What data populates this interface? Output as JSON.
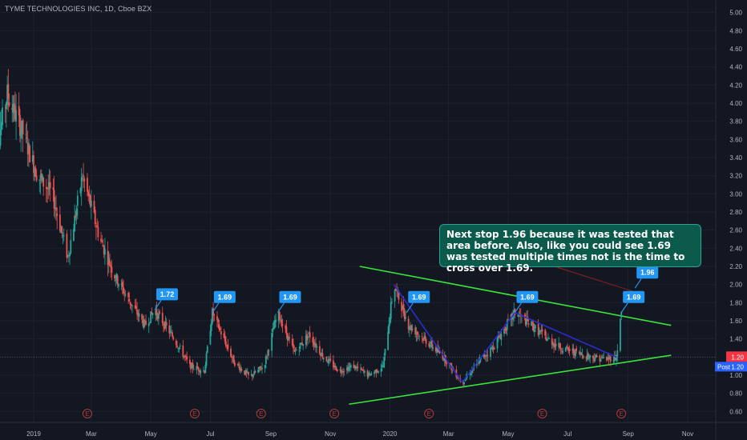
{
  "header": {
    "title": "TYME TECHNOLOGIES INC, 1D, Cboe BZX"
  },
  "annotation": {
    "text": "Next stop 1.96 because it was tested that area before. Also, like you could see 1.69 was tested multiple times not is the time to cross over 1.69."
  },
  "price_badges": {
    "last_price": "1.20",
    "post_label": "Post",
    "post_price": "1.20"
  },
  "colors": {
    "background": "#131722",
    "up_candle": "#26a69a",
    "down_candle": "#ef5350",
    "trendline": "#3ae33a",
    "zigzag": "#2a2ecf",
    "label": "#2196f3",
    "event": "#b03a3a"
  },
  "chart_data": {
    "type": "candlestick",
    "title": "TYME TECHNOLOGIES INC, 1D, Cboe BZX",
    "y_ticks": [
      "0.60",
      "0.80",
      "1.00",
      "1.20",
      "1.40",
      "1.60",
      "1.80",
      "2.00",
      "2.20",
      "2.40",
      "2.60",
      "2.80",
      "3.00",
      "3.20",
      "3.40",
      "3.60",
      "3.80",
      "4.00",
      "4.20",
      "4.40",
      "4.60",
      "4.80",
      "5.00"
    ],
    "ylim": [
      0.55,
      5.05
    ],
    "x_labels": [
      {
        "label": "2019",
        "date": "2019-01-01"
      },
      {
        "label": "Mar",
        "date": "2019-03-01"
      },
      {
        "label": "May",
        "date": "2019-05-01"
      },
      {
        "label": "Jul",
        "date": "2019-07-01"
      },
      {
        "label": "Sep",
        "date": "2019-09-01"
      },
      {
        "label": "Nov",
        "date": "2019-11-01"
      },
      {
        "label": "2020",
        "date": "2020-01-01"
      },
      {
        "label": "Mar",
        "date": "2020-03-01"
      },
      {
        "label": "May",
        "date": "2020-05-01"
      },
      {
        "label": "Jul",
        "date": "2020-07-01"
      },
      {
        "label": "Sep",
        "date": "2020-09-01"
      },
      {
        "label": "Nov",
        "date": "2020-11-01"
      }
    ],
    "price_path": [
      [
        "2018-11-20",
        3.3
      ],
      [
        "2018-12-05",
        4.1
      ],
      [
        "2018-12-20",
        3.7
      ],
      [
        "2019-01-05",
        3.2
      ],
      [
        "2019-01-20",
        3.0
      ],
      [
        "2019-02-05",
        2.3
      ],
      [
        "2019-02-20",
        3.2
      ],
      [
        "2019-03-10",
        2.5
      ],
      [
        "2019-03-25",
        2.1
      ],
      [
        "2019-04-10",
        1.8
      ],
      [
        "2019-04-25",
        1.55
      ],
      [
        "2019-05-05",
        1.72
      ],
      [
        "2019-05-25",
        1.4
      ],
      [
        "2019-06-10",
        1.1
      ],
      [
        "2019-06-25",
        1.05
      ],
      [
        "2019-07-03",
        1.69
      ],
      [
        "2019-07-25",
        1.15
      ],
      [
        "2019-08-10",
        0.98
      ],
      [
        "2019-08-25",
        1.1
      ],
      [
        "2019-09-08",
        1.69
      ],
      [
        "2019-09-25",
        1.25
      ],
      [
        "2019-10-10",
        1.45
      ],
      [
        "2019-10-25",
        1.2
      ],
      [
        "2019-11-10",
        1.05
      ],
      [
        "2019-11-25",
        1.1
      ],
      [
        "2019-12-10",
        1.0
      ],
      [
        "2019-12-25",
        1.1
      ],
      [
        "2020-01-05",
        2.0
      ],
      [
        "2020-01-20",
        1.55
      ],
      [
        "2020-02-05",
        1.4
      ],
      [
        "2020-02-25",
        1.2
      ],
      [
        "2020-03-15",
        0.92
      ],
      [
        "2020-04-01",
        1.15
      ],
      [
        "2020-04-15",
        1.3
      ],
      [
        "2020-05-08",
        1.69
      ],
      [
        "2020-05-25",
        1.55
      ],
      [
        "2020-06-10",
        1.4
      ],
      [
        "2020-06-25",
        1.3
      ],
      [
        "2020-07-10",
        1.25
      ],
      [
        "2020-07-25",
        1.2
      ],
      [
        "2020-08-10",
        1.18
      ],
      [
        "2020-08-20",
        1.2
      ],
      [
        "2020-08-25",
        1.69
      ]
    ],
    "last_price": 1.2,
    "trendlines": [
      {
        "name": "resistance",
        "from": [
          "2019-12-01",
          2.2
        ],
        "to": [
          "2020-10-15",
          1.55
        ]
      },
      {
        "name": "support",
        "from": [
          "2019-11-20",
          0.68
        ],
        "to": [
          "2020-10-15",
          1.22
        ]
      }
    ],
    "zigzag_lines": [
      {
        "from": [
          "2020-01-05",
          2.0
        ],
        "to": [
          "2020-03-15",
          0.92
        ]
      },
      {
        "from": [
          "2020-03-15",
          0.92
        ],
        "to": [
          "2020-05-08",
          1.69
        ]
      },
      {
        "from": [
          "2020-05-08",
          1.69
        ],
        "to": [
          "2020-08-20",
          1.2
        ]
      }
    ],
    "labels": [
      {
        "text": "1.72",
        "date": "2019-05-05",
        "value": 1.72
      },
      {
        "text": "1.69",
        "date": "2019-07-03",
        "value": 1.69
      },
      {
        "text": "1.69",
        "date": "2019-09-08",
        "value": 1.69
      },
      {
        "text": "1.69",
        "date": "2020-01-18",
        "value": 1.69
      },
      {
        "text": "1.69",
        "date": "2020-05-08",
        "value": 1.69
      },
      {
        "text": "1.69",
        "date": "2020-08-25",
        "value": 1.69
      },
      {
        "text": "1.96",
        "date": "2020-09-08",
        "value": 1.96
      }
    ],
    "event_markers": [
      {
        "text": "E",
        "date": "2019-02-25"
      },
      {
        "text": "E",
        "date": "2019-06-15"
      },
      {
        "text": "E",
        "date": "2019-08-22"
      },
      {
        "text": "E",
        "date": "2019-11-05"
      },
      {
        "text": "E",
        "date": "2020-02-10"
      },
      {
        "text": "E",
        "date": "2020-06-05"
      },
      {
        "text": "E",
        "date": "2020-08-25"
      }
    ],
    "grid": true
  }
}
